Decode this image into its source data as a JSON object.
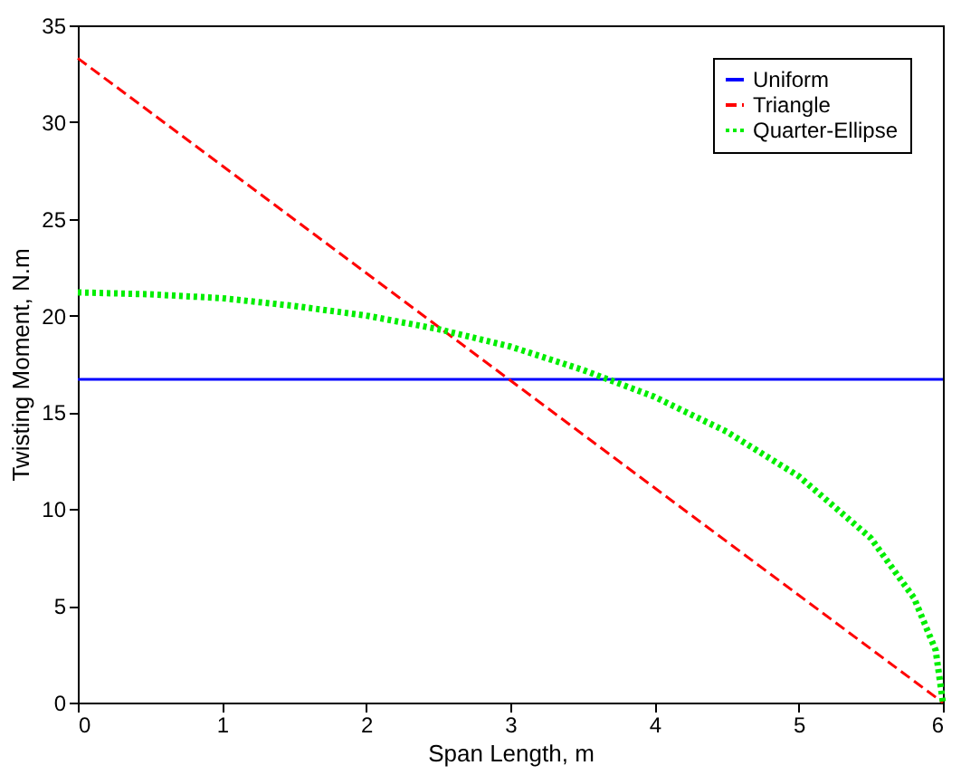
{
  "chart_data": {
    "type": "line",
    "xlabel": "Span Length, m",
    "ylabel": "Twisting Moment, N.m",
    "xlim": [
      0,
      6
    ],
    "ylim": [
      0,
      35
    ],
    "xticks": [
      0,
      1,
      2,
      3,
      4,
      5,
      6
    ],
    "yticks": [
      0,
      5,
      10,
      15,
      20,
      25,
      30,
      35
    ],
    "grid": false,
    "legend": "top right",
    "marker": "none",
    "series": [
      {
        "name": "Uniform",
        "color": "#0000ff",
        "line_style": "solid",
        "x": [
          0,
          6
        ],
        "values": [
          16.7,
          16.7
        ]
      },
      {
        "name": "Triangle",
        "color": "#ff0000",
        "line_style": "dashed",
        "x": [
          0,
          6
        ],
        "values": [
          33.3,
          0
        ]
      },
      {
        "name": "Quarter-Ellipse",
        "color": "#00ee00",
        "line_style": "dotted",
        "x": [
          0,
          0.5,
          1,
          1.5,
          2,
          2.5,
          3,
          3.5,
          4,
          4.5,
          5,
          5.5,
          5.8,
          5.95,
          6
        ],
        "values": [
          21.2,
          21.1,
          20.9,
          20.5,
          20,
          19.3,
          18.4,
          17.2,
          15.8,
          14,
          11.7,
          8.5,
          5.4,
          2.7,
          0
        ]
      }
    ]
  }
}
